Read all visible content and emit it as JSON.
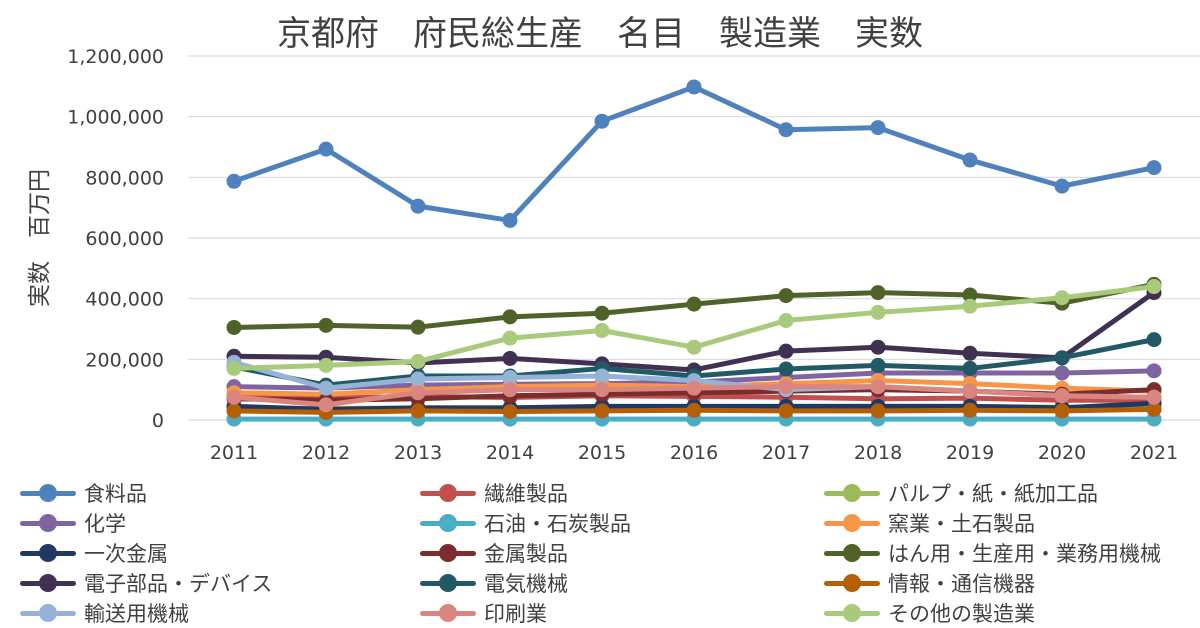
{
  "chart_data": {
    "type": "line",
    "title": "京都府　府民総生産　名目　製造業　実数",
    "ylabel": "実数　百万円",
    "xlabel": "",
    "ylim": [
      0,
      1200000
    ],
    "y_ticks": [
      0,
      200000,
      400000,
      600000,
      800000,
      1000000,
      1200000
    ],
    "y_tick_labels": [
      "0",
      "200,000",
      "400,000",
      "600,000",
      "800,000",
      "1,000,000",
      "1,200,000"
    ],
    "grid": true,
    "legend_position": "bottom",
    "categories": [
      "2011",
      "2012",
      "2013",
      "2014",
      "2015",
      "2016",
      "2017",
      "2018",
      "2019",
      "2020",
      "2021"
    ],
    "series": [
      {
        "name": "食料品",
        "color": "#4f81bd",
        "values": [
          787000,
          893000,
          705000,
          658000,
          985000,
          1098000,
          957000,
          964000,
          857000,
          771000,
          832000
        ]
      },
      {
        "name": "繊維製品",
        "color": "#c0504d",
        "values": [
          85000,
          72000,
          78000,
          74000,
          80000,
          78000,
          75000,
          70000,
          72000,
          65000,
          65000
        ]
      },
      {
        "name": "パルプ・紙・紙加工品",
        "color": "#9bbb59",
        "values": [
          40000,
          38000,
          40000,
          40000,
          42000,
          42000,
          45000,
          45000,
          45000,
          42000,
          45000
        ]
      },
      {
        "name": "化学",
        "color": "#8064a2",
        "values": [
          110000,
          105000,
          115000,
          118000,
          120000,
          125000,
          140000,
          155000,
          155000,
          155000,
          162000
        ]
      },
      {
        "name": "石油・石炭製品",
        "color": "#4bacc6",
        "values": [
          3000,
          3000,
          3000,
          3000,
          3000,
          3000,
          3000,
          3000,
          3000,
          3000,
          3000
        ]
      },
      {
        "name": "窯業・土石製品",
        "color": "#f79646",
        "values": [
          90000,
          85000,
          100000,
          110000,
          115000,
          110000,
          120000,
          130000,
          120000,
          105000,
          95000
        ]
      },
      {
        "name": "一次金属",
        "color": "#1f3864",
        "values": [
          45000,
          35000,
          40000,
          40000,
          45000,
          45000,
          45000,
          45000,
          45000,
          40000,
          55000
        ]
      },
      {
        "name": "金属製品",
        "color": "#7b2c2c",
        "values": [
          70000,
          65000,
          70000,
          80000,
          85000,
          90000,
          95000,
          100000,
          95000,
          85000,
          100000
        ]
      },
      {
        "name": "はん用・生産用・業務用機械",
        "color": "#4f6228",
        "values": [
          305000,
          312000,
          306000,
          340000,
          352000,
          382000,
          410000,
          420000,
          412000,
          385000,
          447000
        ]
      },
      {
        "name": "電子部品・デバイス",
        "color": "#403152",
        "values": [
          210000,
          207000,
          188000,
          203000,
          185000,
          165000,
          227000,
          240000,
          220000,
          205000,
          420000
        ]
      },
      {
        "name": "電気機械",
        "color": "#215967",
        "values": [
          175000,
          115000,
          145000,
          145000,
          170000,
          145000,
          168000,
          180000,
          170000,
          205000,
          265000
        ]
      },
      {
        "name": "情報・通信機器",
        "color": "#b45f06",
        "values": [
          30000,
          25000,
          30000,
          28000,
          30000,
          32000,
          30000,
          30000,
          32000,
          30000,
          35000
        ]
      },
      {
        "name": "輸送用機械",
        "color": "#95b3d7",
        "values": [
          190000,
          105000,
          135000,
          140000,
          145000,
          130000,
          100000,
          110000,
          95000,
          80000,
          75000
        ]
      },
      {
        "name": "印刷業",
        "color": "#da8580",
        "values": [
          75000,
          50000,
          90000,
          100000,
          100000,
          105000,
          110000,
          110000,
          95000,
          80000,
          75000
        ]
      },
      {
        "name": "その他の製造業",
        "color": "#a9c97b",
        "values": [
          170000,
          180000,
          193000,
          270000,
          295000,
          240000,
          328000,
          355000,
          375000,
          403000,
          440000
        ]
      }
    ]
  }
}
